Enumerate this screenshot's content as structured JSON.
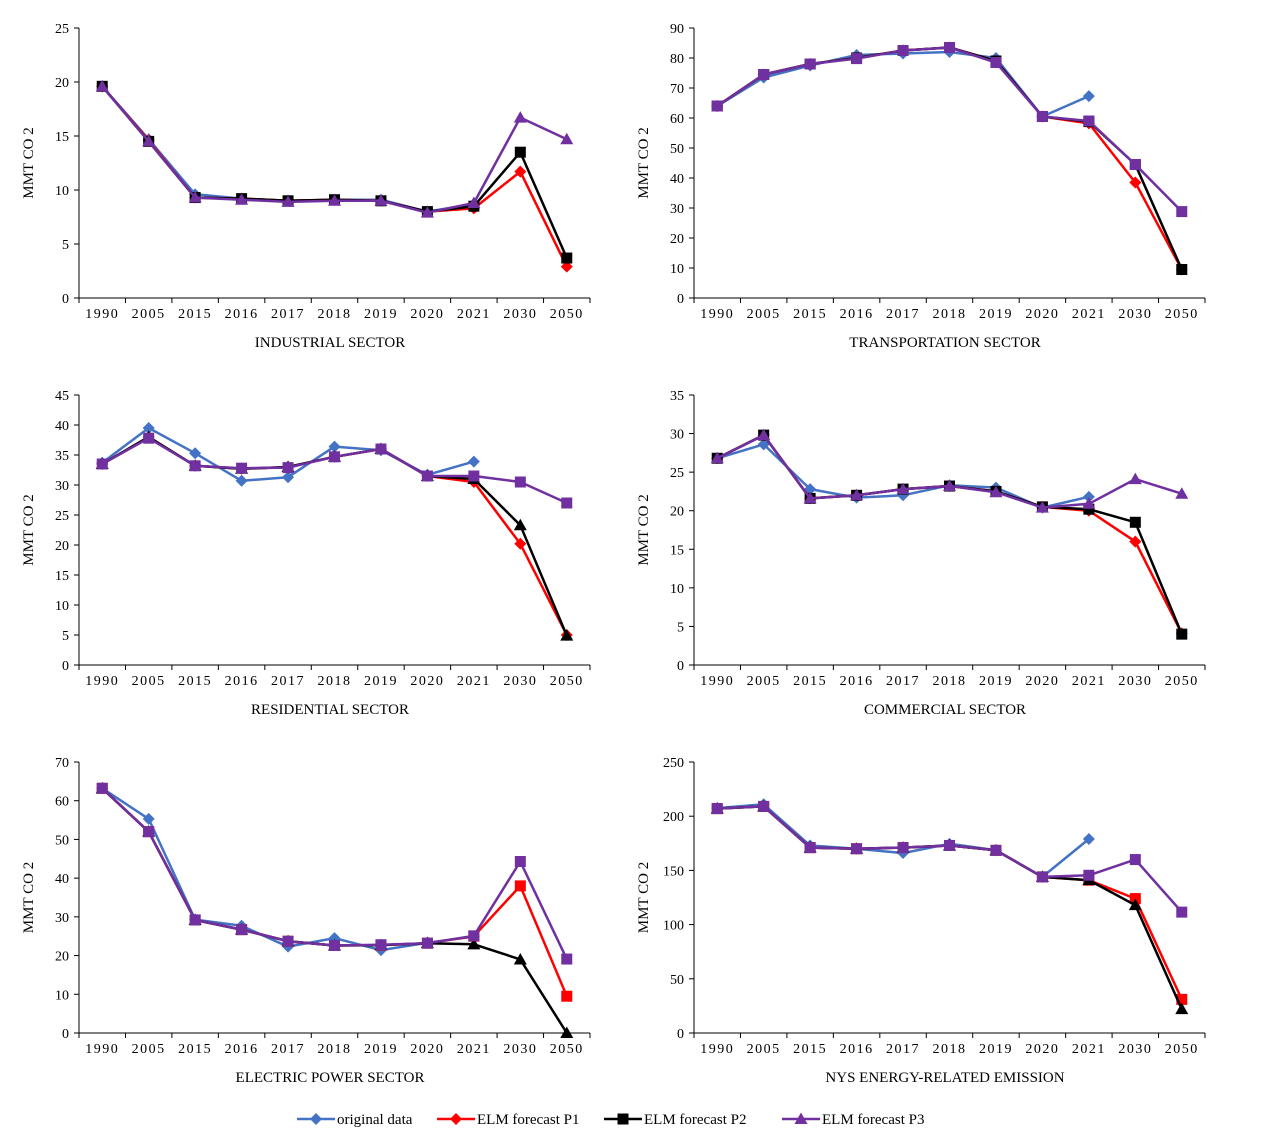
{
  "legend": {
    "placement": "bottom-center",
    "items": [
      {
        "label": "original data",
        "color": "#4472C4",
        "marker": "diamond"
      },
      {
        "label": "ELM forecast P1",
        "color": "#FF0000",
        "marker": "diamond"
      },
      {
        "label": "ELM forecast P2",
        "color": "#000000",
        "marker": "square"
      },
      {
        "label": "ELM forecast P3",
        "color": "#7030A0",
        "marker": "triangle"
      }
    ]
  },
  "chart_data": [
    {
      "type": "line",
      "title": "INDUSTRIAL SECTOR",
      "ylabel": "MMT CO 2",
      "categories": [
        "1990",
        "2005",
        "2015",
        "2016",
        "2017",
        "2018",
        "2019",
        "2020",
        "2021",
        "2030",
        "2050"
      ],
      "ylim": [
        0,
        25
      ],
      "yticks": [
        0,
        5,
        10,
        15,
        20,
        25
      ],
      "grid": false,
      "series": [
        {
          "name": "original data",
          "color": "#4472C4",
          "marker": "diamond",
          "values": [
            19.6,
            14.7,
            9.6,
            9.2,
            9.0,
            9.1,
            9.1,
            8.0,
            8.7,
            null,
            null
          ]
        },
        {
          "name": "ELM forecast P1",
          "color": "#FF0000",
          "marker": "diamond",
          "values": [
            19.6,
            14.6,
            9.3,
            9.2,
            9.0,
            9.1,
            9.0,
            8.0,
            8.3,
            11.7,
            2.9
          ]
        },
        {
          "name": "ELM forecast P2",
          "color": "#000000",
          "marker": "square",
          "values": [
            19.6,
            14.5,
            9.3,
            9.2,
            9.0,
            9.1,
            9.0,
            8.0,
            8.5,
            13.5,
            3.7
          ]
        },
        {
          "name": "ELM forecast P3",
          "color": "#7030A0",
          "marker": "triangle",
          "values": [
            19.6,
            14.5,
            9.3,
            9.1,
            8.9,
            9.0,
            9.0,
            7.9,
            8.8,
            16.7,
            14.7
          ]
        }
      ]
    },
    {
      "type": "line",
      "title": "TRANSPORTATION SECTOR",
      "ylabel": "MMT CO 2",
      "categories": [
        "1990",
        "2005",
        "2015",
        "2016",
        "2017",
        "2018",
        "2019",
        "2020",
        "2021",
        "2030",
        "2050"
      ],
      "ylim": [
        0,
        90
      ],
      "yticks": [
        0,
        10,
        20,
        30,
        40,
        50,
        60,
        70,
        80,
        90
      ],
      "grid": false,
      "series": [
        {
          "name": "original data",
          "color": "#4472C4",
          "marker": "diamond",
          "values": [
            64,
            73.5,
            77.5,
            81,
            81.5,
            82,
            80,
            60.5,
            67.3,
            null,
            null
          ]
        },
        {
          "name": "ELM forecast P1",
          "color": "#FF0000",
          "marker": "diamond",
          "values": [
            64,
            74.5,
            78,
            80,
            82.5,
            83.5,
            79,
            60.5,
            58.2,
            38.5,
            9.5
          ]
        },
        {
          "name": "ELM forecast P2",
          "color": "#000000",
          "marker": "square",
          "values": [
            64,
            74.5,
            78,
            80,
            82.5,
            83.5,
            79,
            60.5,
            58.8,
            44.5,
            9.5
          ]
        },
        {
          "name": "ELM forecast P3",
          "color": "#7030A0",
          "marker": "square",
          "values": [
            64,
            74.5,
            78,
            79.8,
            82.5,
            83.5,
            78.5,
            60.5,
            59,
            44.5,
            28.8
          ]
        }
      ]
    },
    {
      "type": "line",
      "title": "RESIDENTIAL SECTOR",
      "ylabel": "MMT CO 2",
      "categories": [
        "1990",
        "2005",
        "2015",
        "2016",
        "2017",
        "2018",
        "2019",
        "2020",
        "2021",
        "2030",
        "2050"
      ],
      "ylim": [
        0,
        45
      ],
      "yticks": [
        0,
        5,
        10,
        15,
        20,
        25,
        30,
        35,
        40,
        45
      ],
      "grid": false,
      "series": [
        {
          "name": "original data",
          "color": "#4472C4",
          "marker": "diamond",
          "values": [
            33.7,
            39.5,
            35.3,
            30.7,
            31.3,
            36.4,
            35.8,
            31.7,
            33.9,
            null,
            null
          ]
        },
        {
          "name": "ELM forecast P1",
          "color": "#FF0000",
          "marker": "diamond",
          "values": [
            33.5,
            38.0,
            33.2,
            32.7,
            33.0,
            34.7,
            36.0,
            31.5,
            30.5,
            20.2,
            5.0
          ]
        },
        {
          "name": "ELM forecast P2",
          "color": "#000000",
          "marker": "triangle",
          "values": [
            33.5,
            38.0,
            33.2,
            32.7,
            33.0,
            34.7,
            36.0,
            31.5,
            31.0,
            23.3,
            4.9
          ]
        },
        {
          "name": "ELM forecast P3",
          "color": "#7030A0",
          "marker": "square",
          "values": [
            33.5,
            37.8,
            33.2,
            32.8,
            32.9,
            34.7,
            36.0,
            31.5,
            31.5,
            30.5,
            27.0
          ]
        }
      ]
    },
    {
      "type": "line",
      "title": "COMMERCIAL SECTOR",
      "ylabel": "MMT CO 2",
      "categories": [
        "1990",
        "2005",
        "2015",
        "2016",
        "2017",
        "2018",
        "2019",
        "2020",
        "2021",
        "2030",
        "2050"
      ],
      "ylim": [
        0,
        35
      ],
      "yticks": [
        0,
        5,
        10,
        15,
        20,
        25,
        30,
        35
      ],
      "grid": false,
      "series": [
        {
          "name": "original data",
          "color": "#4472C4",
          "marker": "diamond",
          "values": [
            26.8,
            28.6,
            22.8,
            21.7,
            22.0,
            23.3,
            23.0,
            20.4,
            21.8,
            null,
            null
          ]
        },
        {
          "name": "ELM forecast P1",
          "color": "#FF0000",
          "marker": "diamond",
          "values": [
            26.8,
            29.8,
            21.6,
            22.0,
            22.8,
            23.2,
            22.5,
            20.5,
            20.0,
            16.0,
            4.1
          ]
        },
        {
          "name": "ELM forecast P2",
          "color": "#000000",
          "marker": "square",
          "values": [
            26.8,
            29.8,
            21.6,
            22.0,
            22.8,
            23.2,
            22.5,
            20.5,
            20.2,
            18.5,
            4.0
          ]
        },
        {
          "name": "ELM forecast P3",
          "color": "#7030A0",
          "marker": "triangle",
          "values": [
            26.8,
            29.8,
            21.6,
            22.0,
            22.8,
            23.2,
            22.4,
            20.4,
            20.9,
            24.1,
            22.2
          ]
        }
      ]
    },
    {
      "type": "line",
      "title": "ELECTRIC POWER SECTOR",
      "ylabel": "MMT CO 2",
      "categories": [
        "1990",
        "2005",
        "2015",
        "2016",
        "2017",
        "2018",
        "2019",
        "2020",
        "2021",
        "2030",
        "2050"
      ],
      "ylim": [
        0,
        70
      ],
      "yticks": [
        0,
        10,
        20,
        30,
        40,
        50,
        60,
        70
      ],
      "grid": false,
      "series": [
        {
          "name": "original data",
          "color": "#4472C4",
          "marker": "diamond",
          "values": [
            63.2,
            55.3,
            29.3,
            27.7,
            22.3,
            24.5,
            21.4,
            23.3,
            24.9,
            null,
            null
          ]
        },
        {
          "name": "ELM forecast P1",
          "color": "#FF0000",
          "marker": "square",
          "values": [
            63.2,
            52,
            29.2,
            26.7,
            23.7,
            22.6,
            22.7,
            23.2,
            25,
            38,
            9.5
          ]
        },
        {
          "name": "ELM forecast P2",
          "color": "#000000",
          "marker": "triangle",
          "values": [
            63.2,
            52,
            29.2,
            26.7,
            23.7,
            22.6,
            22.7,
            23.2,
            22.9,
            19.0,
            0
          ]
        },
        {
          "name": "ELM forecast P3",
          "color": "#7030A0",
          "marker": "square",
          "values": [
            63.2,
            52,
            29.2,
            26.7,
            23.7,
            22.6,
            22.8,
            23.2,
            25.1,
            44.3,
            19.1
          ]
        }
      ]
    },
    {
      "type": "line",
      "title": "NYS ENERGY-RELATED EMISSION",
      "ylabel": "MMT CO 2",
      "categories": [
        "1990",
        "2005",
        "2015",
        "2016",
        "2017",
        "2018",
        "2019",
        "2020",
        "2021",
        "2030",
        "2050"
      ],
      "ylim": [
        0,
        250
      ],
      "yticks": [
        0,
        50,
        100,
        150,
        200,
        250
      ],
      "grid": false,
      "series": [
        {
          "name": "original data",
          "color": "#4472C4",
          "marker": "diamond",
          "values": [
            207.5,
            211,
            173,
            170,
            166,
            174.5,
            168.5,
            144,
            179,
            null,
            null
          ]
        },
        {
          "name": "ELM forecast P1",
          "color": "#FF0000",
          "marker": "square",
          "values": [
            207,
            209,
            171,
            170,
            171,
            173,
            168.5,
            144,
            141,
            124,
            31
          ]
        },
        {
          "name": "ELM forecast P2",
          "color": "#000000",
          "marker": "triangle",
          "values": [
            207,
            209,
            171,
            170,
            171,
            173,
            168.5,
            144,
            141,
            118,
            22
          ]
        },
        {
          "name": "ELM forecast P3",
          "color": "#7030A0",
          "marker": "square",
          "values": [
            207,
            209,
            171,
            170,
            171,
            173,
            168.5,
            144,
            145.5,
            160,
            111.5
          ]
        }
      ]
    }
  ]
}
